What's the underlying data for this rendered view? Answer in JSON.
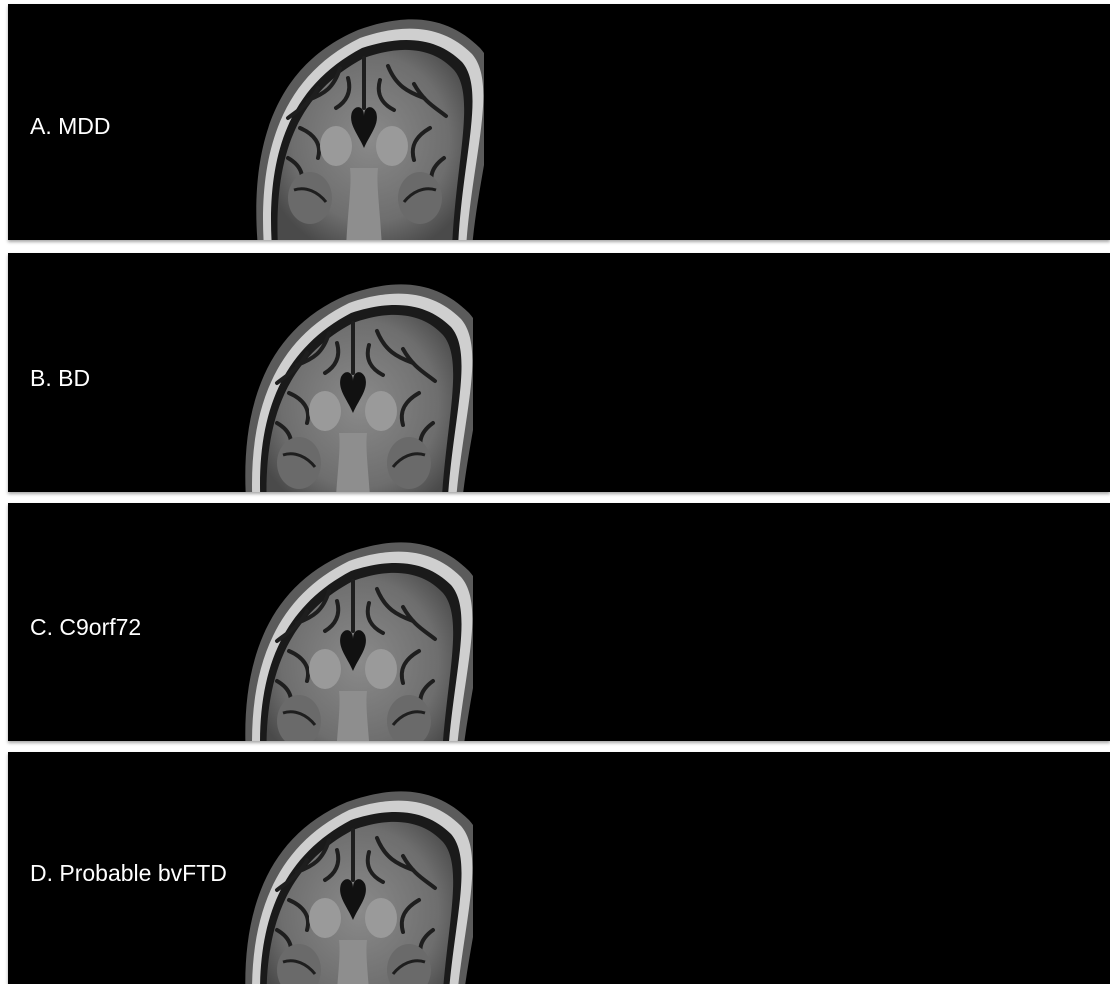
{
  "panels": [
    {
      "label": "A. MDD"
    },
    {
      "label": "B. BD"
    },
    {
      "label": "C. C9orf72"
    },
    {
      "label": "D. Probable bvFTD"
    }
  ],
  "colors": {
    "background": "#000000",
    "label": "#ffffff",
    "page": "#ffffff"
  },
  "image_content": "coronal-mri-brain-slice"
}
